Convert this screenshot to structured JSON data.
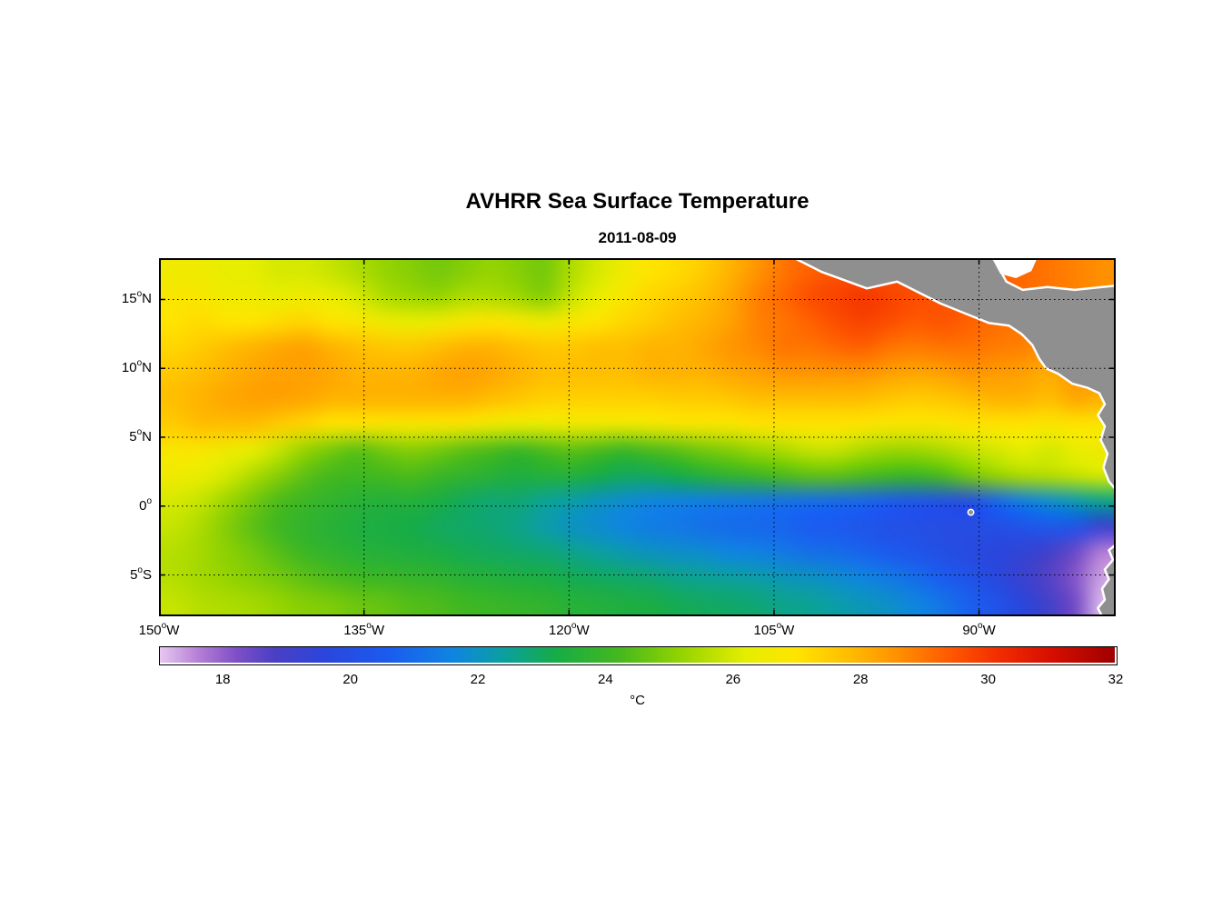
{
  "chart_data": {
    "type": "heatmap",
    "title": "AVHRR Sea Surface Temperature",
    "subtitle": "2011-08-09",
    "units": "°C",
    "lon_range": [
      -150,
      -80
    ],
    "lat_range": [
      -8,
      18
    ],
    "x_ticks": [
      {
        "lon": -150,
        "value": "150",
        "deg": "o",
        "suffix": "W"
      },
      {
        "lon": -135,
        "value": "135",
        "deg": "o",
        "suffix": "W"
      },
      {
        "lon": -120,
        "value": "120",
        "deg": "o",
        "suffix": "W"
      },
      {
        "lon": -105,
        "value": "105",
        "deg": "o",
        "suffix": "W"
      },
      {
        "lon": -90,
        "value": "90",
        "deg": "o",
        "suffix": "W"
      }
    ],
    "y_ticks": [
      {
        "lat": 15,
        "value": "15",
        "deg": "o",
        "suffix": "N"
      },
      {
        "lat": 10,
        "value": "10",
        "deg": "o",
        "suffix": "N"
      },
      {
        "lat": 5,
        "value": "5",
        "deg": "o",
        "suffix": "N"
      },
      {
        "lat": 0,
        "value": "0",
        "deg": "o",
        "suffix": ""
      },
      {
        "lat": -5,
        "value": "5",
        "deg": "o",
        "suffix": "S"
      }
    ],
    "lon": [
      -150,
      -148,
      -146,
      -144,
      -142,
      -140,
      -138,
      -136,
      -134,
      -132,
      -130,
      -128,
      -126,
      -124,
      -122,
      -120,
      -118,
      -116,
      -114,
      -112,
      -110,
      -108,
      -106,
      -104,
      -102,
      -100,
      -98,
      -96,
      -94,
      -92,
      -90,
      -88,
      -86,
      -84,
      -82,
      -80
    ],
    "lat": [
      18,
      16,
      14,
      12,
      10,
      8,
      6,
      4,
      2,
      0,
      -2,
      -4,
      -6,
      -8
    ],
    "sst": [
      [
        26.5,
        26.5,
        26.3,
        26.2,
        26.0,
        26.0,
        25.8,
        25.5,
        25.2,
        25.0,
        24.8,
        25.0,
        25.2,
        25.0,
        24.8,
        25.5,
        26.0,
        26.5,
        27.0,
        27.2,
        27.5,
        28.0,
        28.5,
        29.0,
        29.3,
        29.5,
        29.5,
        29.5,
        29.5,
        29.5,
        29.5,
        29.4,
        29.2,
        29.0,
        28.8,
        28.6
      ],
      [
        26.8,
        26.8,
        26.5,
        26.5,
        26.3,
        26.5,
        26.3,
        26.0,
        25.5,
        25.3,
        25.2,
        25.5,
        25.5,
        25.3,
        25.0,
        25.8,
        26.3,
        26.8,
        27.3,
        27.5,
        27.8,
        28.2,
        28.8,
        29.2,
        29.6,
        29.8,
        30.0,
        29.8,
        29.6,
        29.5,
        29.4,
        29.3,
        29.1,
        29.0,
        28.8,
        28.6
      ],
      [
        27.0,
        27.2,
        27.0,
        27.0,
        27.2,
        27.3,
        27.0,
        26.8,
        26.5,
        26.3,
        26.5,
        26.8,
        27.0,
        26.8,
        26.5,
        26.8,
        27.0,
        27.3,
        27.5,
        27.8,
        28.0,
        28.3,
        28.8,
        29.0,
        29.3,
        29.6,
        29.8,
        29.6,
        29.4,
        29.5,
        29.3,
        29.1,
        29.0,
        28.9,
        29.0,
        28.6
      ],
      [
        27.3,
        27.5,
        27.8,
        28.0,
        28.2,
        28.3,
        28.0,
        27.8,
        27.6,
        27.6,
        27.8,
        28.0,
        28.0,
        27.8,
        27.6,
        27.6,
        27.8,
        27.8,
        28.0,
        28.0,
        28.2,
        28.5,
        28.7,
        29.0,
        29.0,
        29.2,
        29.3,
        29.0,
        28.9,
        29.0,
        29.0,
        28.9,
        28.8,
        28.6,
        29.0,
        28.8
      ],
      [
        27.6,
        27.8,
        28.0,
        28.2,
        28.3,
        28.3,
        28.2,
        28.0,
        28.0,
        28.0,
        28.2,
        28.3,
        28.2,
        28.0,
        27.8,
        27.8,
        27.8,
        27.8,
        28.0,
        28.0,
        28.0,
        28.2,
        28.3,
        28.5,
        28.5,
        28.5,
        28.5,
        28.3,
        28.2,
        28.3,
        28.5,
        28.4,
        28.3,
        28.1,
        28.5,
        28.3
      ],
      [
        27.8,
        28.0,
        28.2,
        28.3,
        28.3,
        28.2,
        28.0,
        28.0,
        28.0,
        28.0,
        28.0,
        28.0,
        27.8,
        27.6,
        27.4,
        27.4,
        27.4,
        27.4,
        27.4,
        27.5,
        27.5,
        27.6,
        27.8,
        27.8,
        27.8,
        27.8,
        27.8,
        27.6,
        27.5,
        27.6,
        27.8,
        28.0,
        28.0,
        27.8,
        28.2,
        28.0
      ],
      [
        27.5,
        27.8,
        27.8,
        27.8,
        27.5,
        27.3,
        27.0,
        27.0,
        26.8,
        26.8,
        26.8,
        26.8,
        26.5,
        26.4,
        26.4,
        26.5,
        26.5,
        26.5,
        26.6,
        26.8,
        26.8,
        26.8,
        27.0,
        27.0,
        27.0,
        27.0,
        26.9,
        26.8,
        26.8,
        26.8,
        27.0,
        27.0,
        27.0,
        26.8,
        27.0,
        26.8
      ],
      [
        26.8,
        26.8,
        26.5,
        26.3,
        25.8,
        25.2,
        24.8,
        24.5,
        24.8,
        25.0,
        24.8,
        24.5,
        24.3,
        24.0,
        24.3,
        24.5,
        24.3,
        24.0,
        24.3,
        24.5,
        24.8,
        25.0,
        25.3,
        25.5,
        25.8,
        25.8,
        25.5,
        25.3,
        25.3,
        25.5,
        25.8,
        26.0,
        26.2,
        26.0,
        26.3,
        26.5
      ],
      [
        26.5,
        26.3,
        26.0,
        25.5,
        25.0,
        24.5,
        24.2,
        24.1,
        24.2,
        24.3,
        24.0,
        23.8,
        23.6,
        23.4,
        23.5,
        23.5,
        23.2,
        23.0,
        23.0,
        23.2,
        23.5,
        23.8,
        24.0,
        24.3,
        24.5,
        24.5,
        24.3,
        24.1,
        24.0,
        24.3,
        24.8,
        25.2,
        25.5,
        25.6,
        25.8,
        26.0
      ],
      [
        26.0,
        25.8,
        25.3,
        24.8,
        24.3,
        24.0,
        23.8,
        23.6,
        23.5,
        23.5,
        23.3,
        23.0,
        22.8,
        22.8,
        22.5,
        22.3,
        22.0,
        21.8,
        21.6,
        21.5,
        21.4,
        21.3,
        21.2,
        21.1,
        21.0,
        20.9,
        20.8,
        20.5,
        20.3,
        20.1,
        20.0,
        20.8,
        21.4,
        21.8,
        22.2,
        22.6
      ],
      [
        25.8,
        25.5,
        25.0,
        24.5,
        24.1,
        23.8,
        23.6,
        23.4,
        23.3,
        23.2,
        23.0,
        22.9,
        22.8,
        22.6,
        22.3,
        22.0,
        21.8,
        21.6,
        21.4,
        21.3,
        21.1,
        21.0,
        20.9,
        20.8,
        20.6,
        20.5,
        20.3,
        20.1,
        20.0,
        19.9,
        19.9,
        20.0,
        20.2,
        20.4,
        20.2,
        19.2
      ],
      [
        25.6,
        25.4,
        25.1,
        24.8,
        24.4,
        24.0,
        23.8,
        23.6,
        23.5,
        23.4,
        23.3,
        23.1,
        23.0,
        22.9,
        22.8,
        22.6,
        22.4,
        22.2,
        22.0,
        21.9,
        21.8,
        21.6,
        21.5,
        21.3,
        21.1,
        21.0,
        20.8,
        20.5,
        20.3,
        20.0,
        19.8,
        19.6,
        19.4,
        19.0,
        18.4,
        17.6
      ],
      [
        25.6,
        25.4,
        25.2,
        25.0,
        24.8,
        24.5,
        24.3,
        24.1,
        24.0,
        23.9,
        23.8,
        23.6,
        23.5,
        23.4,
        23.3,
        23.1,
        23.0,
        22.9,
        22.8,
        22.6,
        22.5,
        22.4,
        22.3,
        22.1,
        22.0,
        21.8,
        21.6,
        21.3,
        21.0,
        20.6,
        20.2,
        19.7,
        19.2,
        18.7,
        18.1,
        17.3
      ],
      [
        25.8,
        25.6,
        25.5,
        25.4,
        25.2,
        25.0,
        24.9,
        24.7,
        24.6,
        24.4,
        24.3,
        24.1,
        24.0,
        23.9,
        23.8,
        23.6,
        23.5,
        23.4,
        23.3,
        23.1,
        23.0,
        22.9,
        22.8,
        22.6,
        22.5,
        22.3,
        22.1,
        21.9,
        21.6,
        21.2,
        20.7,
        20.2,
        19.6,
        19.0,
        18.3,
        17.1
      ]
    ],
    "colorbar": {
      "min": 17,
      "max": 32,
      "ticks": [
        18,
        20,
        22,
        24,
        26,
        28,
        30,
        32
      ],
      "label": "°C"
    },
    "colormap_stops": [
      {
        "t": 17.0,
        "c": "#e6c8f0"
      },
      {
        "t": 17.6,
        "c": "#b57fd6"
      },
      {
        "t": 18.2,
        "c": "#7e4fc8"
      },
      {
        "t": 18.8,
        "c": "#4b3fc4"
      },
      {
        "t": 19.6,
        "c": "#2a46dc"
      },
      {
        "t": 20.6,
        "c": "#1b5cf0"
      },
      {
        "t": 21.6,
        "c": "#0f85e0"
      },
      {
        "t": 22.4,
        "c": "#0aa0a0"
      },
      {
        "t": 23.2,
        "c": "#16ac48"
      },
      {
        "t": 24.2,
        "c": "#44b81e"
      },
      {
        "t": 25.2,
        "c": "#96d400"
      },
      {
        "t": 26.2,
        "c": "#e6ee00"
      },
      {
        "t": 27.0,
        "c": "#ffe400"
      },
      {
        "t": 27.8,
        "c": "#ffbe00"
      },
      {
        "t": 28.6,
        "c": "#ff9000"
      },
      {
        "t": 29.4,
        "c": "#ff5a00"
      },
      {
        "t": 30.2,
        "c": "#f22c00"
      },
      {
        "t": 31.0,
        "c": "#d60f00"
      },
      {
        "t": 32.0,
        "c": "#a00000"
      }
    ],
    "land": {
      "fill": "#8f8f8f",
      "outline": "#ffffff",
      "polygons": {
        "central_america_colombia": [
          [
            -103.5,
            18
          ],
          [
            -101.5,
            17
          ],
          [
            -98.2,
            15.8
          ],
          [
            -96,
            16.3
          ],
          [
            -94.6,
            15.6
          ],
          [
            -92.8,
            14.7
          ],
          [
            -90.8,
            13.9
          ],
          [
            -89.3,
            13.3
          ],
          [
            -87.8,
            13.1
          ],
          [
            -86.9,
            12.5
          ],
          [
            -86.1,
            11.7
          ],
          [
            -85.6,
            10.7
          ],
          [
            -85.1,
            10
          ],
          [
            -84.2,
            9.6
          ],
          [
            -83.2,
            8.9
          ],
          [
            -82.1,
            8.6
          ],
          [
            -81.2,
            8.2
          ],
          [
            -80.8,
            7.4
          ],
          [
            -81.3,
            6.6
          ],
          [
            -80.8,
            5.8
          ],
          [
            -81.1,
            4.8
          ],
          [
            -80.6,
            3.8
          ],
          [
            -80.9,
            2.8
          ],
          [
            -80.5,
            1.8
          ],
          [
            -80,
            1.2
          ],
          [
            -80,
            16
          ],
          [
            -83,
            15.7
          ],
          [
            -85,
            15.9
          ],
          [
            -86.8,
            15.7
          ],
          [
            -88,
            16.3
          ],
          [
            -88.5,
            17.2
          ],
          [
            -88.9,
            18
          ]
        ],
        "peru_coast": [
          [
            -80,
            -2.8
          ],
          [
            -80.5,
            -3.2
          ],
          [
            -80.2,
            -3.9
          ],
          [
            -80.8,
            -4.6
          ],
          [
            -80.5,
            -5.3
          ],
          [
            -81,
            -6
          ],
          [
            -80.8,
            -6.8
          ],
          [
            -81.3,
            -7.4
          ],
          [
            -81,
            -8
          ],
          [
            -80,
            -8
          ]
        ]
      },
      "nodata_patch": [
        [
          -89,
          18
        ],
        [
          -85.8,
          18
        ],
        [
          -86.2,
          17.1
        ],
        [
          -87.3,
          16.6
        ],
        [
          -88.4,
          16.9
        ]
      ],
      "islands": [
        {
          "name": "galapagos",
          "lon": -90.6,
          "lat": -0.45
        }
      ]
    },
    "grid": {
      "on": true,
      "style": "dotted"
    }
  }
}
